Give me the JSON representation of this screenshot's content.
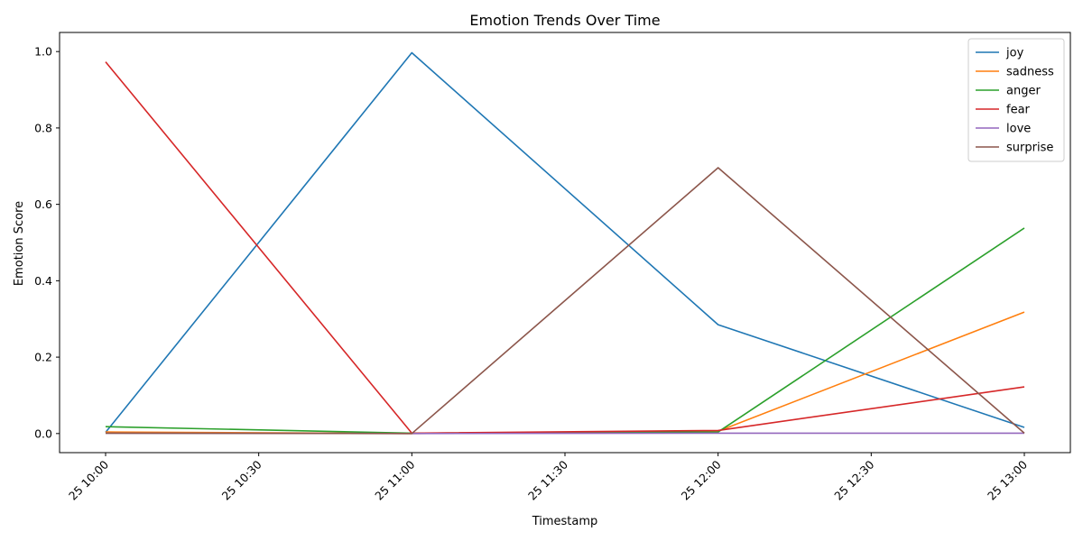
{
  "chart_data": {
    "type": "line",
    "title": "Emotion Trends Over Time",
    "xlabel": "Timestamp",
    "ylabel": "Emotion Score",
    "x": [
      "25 10:00",
      "25 11:00",
      "25 12:00",
      "25 13:00"
    ],
    "x_ticks": [
      "25 10:00",
      "25 10:30",
      "25 11:00",
      "25 11:30",
      "25 12:00",
      "25 12:30",
      "25 13:00"
    ],
    "y_ticks": [
      "0.0",
      "0.2",
      "0.4",
      "0.6",
      "0.8",
      "1.0"
    ],
    "ylim": [
      -0.05,
      1.05
    ],
    "grid": false,
    "legend_position": "top-right",
    "series": [
      {
        "name": "joy",
        "color": "#1f77b4",
        "values": [
          0.003,
          0.997,
          0.285,
          0.016
        ]
      },
      {
        "name": "sadness",
        "color": "#ff7f0e",
        "values": [
          0.004,
          0.0,
          0.006,
          0.318
        ]
      },
      {
        "name": "anger",
        "color": "#2ca02c",
        "values": [
          0.018,
          0.001,
          0.004,
          0.538
        ]
      },
      {
        "name": "fear",
        "color": "#d62728",
        "values": [
          0.973,
          0.001,
          0.008,
          0.122
        ]
      },
      {
        "name": "love",
        "color": "#9467bd",
        "values": [
          0.001,
          0.0,
          0.001,
          0.001
        ]
      },
      {
        "name": "surprise",
        "color": "#8c564b",
        "values": [
          0.001,
          0.0,
          0.696,
          0.001
        ]
      }
    ]
  }
}
